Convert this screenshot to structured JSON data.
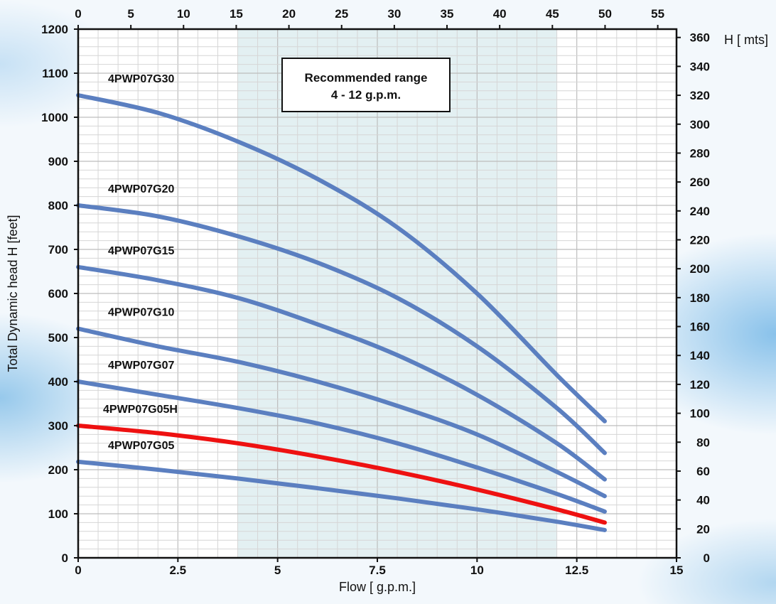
{
  "chart_data": {
    "type": "line",
    "xlabel": "Flow [ g.p.m.]",
    "ylabel": "Total Dynamic head H [feet]",
    "y2label": "H [ mts]",
    "xlim": [
      0,
      15
    ],
    "ylim": [
      0,
      1200
    ],
    "x_ticks": [
      "0",
      "2.5",
      "5",
      "7.5",
      "10",
      "12.5",
      "15"
    ],
    "y_ticks": [
      "0",
      "100",
      "200",
      "300",
      "400",
      "500",
      "600",
      "700",
      "800",
      "900",
      "1000",
      "1100",
      "1200"
    ],
    "x2_unit": "L/min",
    "x2lim": [
      0,
      56.78
    ],
    "x2_ticks": [
      "0",
      "5",
      "10",
      "15",
      "20",
      "25",
      "30",
      "35",
      "40",
      "45",
      "50",
      "55"
    ],
    "y2_unit": "m",
    "y2lim": [
      0,
      365.76
    ],
    "y2_ticks": [
      "0",
      "20",
      "40",
      "60",
      "80",
      "100",
      "120",
      "140",
      "160",
      "180",
      "200",
      "220",
      "240",
      "260",
      "280",
      "300",
      "320",
      "340",
      "360"
    ],
    "grid": true,
    "recommended_range": {
      "x_from": 4,
      "x_to": 12,
      "line1": "Recommended range",
      "line2": "4 - 12 g.p.m."
    },
    "series": [
      {
        "name": "4PWP07G30",
        "color": "#5b7fc0",
        "x": [
          0,
          2,
          4,
          6,
          8,
          10,
          12,
          13.2
        ],
        "y": [
          1050,
          1010,
          945,
          860,
          750,
          600,
          415,
          310
        ]
      },
      {
        "name": "4PWP07G20",
        "color": "#5b7fc0",
        "x": [
          0,
          2,
          4,
          6,
          8,
          10,
          12,
          13.2
        ],
        "y": [
          800,
          775,
          730,
          670,
          590,
          480,
          340,
          238
        ]
      },
      {
        "name": "4PWP07G15",
        "color": "#5b7fc0",
        "x": [
          0,
          2,
          4,
          6,
          8,
          10,
          12,
          13.2
        ],
        "y": [
          660,
          630,
          590,
          530,
          460,
          370,
          260,
          178
        ]
      },
      {
        "name": "4PWP07G10",
        "color": "#5b7fc0",
        "x": [
          0,
          2,
          4,
          6,
          8,
          10,
          12,
          13.2
        ],
        "y": [
          520,
          480,
          445,
          400,
          345,
          280,
          195,
          140
        ]
      },
      {
        "name": "4PWP07G07",
        "color": "#5b7fc0",
        "x": [
          0,
          2,
          4,
          6,
          8,
          10,
          12,
          13.2
        ],
        "y": [
          400,
          370,
          340,
          305,
          260,
          205,
          145,
          105
        ]
      },
      {
        "name": "4PWP07G05H",
        "color": "#ee1111",
        "x": [
          0,
          2,
          4,
          6,
          8,
          10,
          12,
          13.2
        ],
        "y": [
          300,
          283,
          260,
          230,
          195,
          155,
          110,
          80
        ]
      },
      {
        "name": "4PWP07G05",
        "color": "#5b7fc0",
        "x": [
          0,
          2,
          4,
          6,
          8,
          10,
          12,
          13.2
        ],
        "y": [
          218,
          200,
          180,
          158,
          135,
          110,
          82,
          63
        ]
      }
    ]
  }
}
